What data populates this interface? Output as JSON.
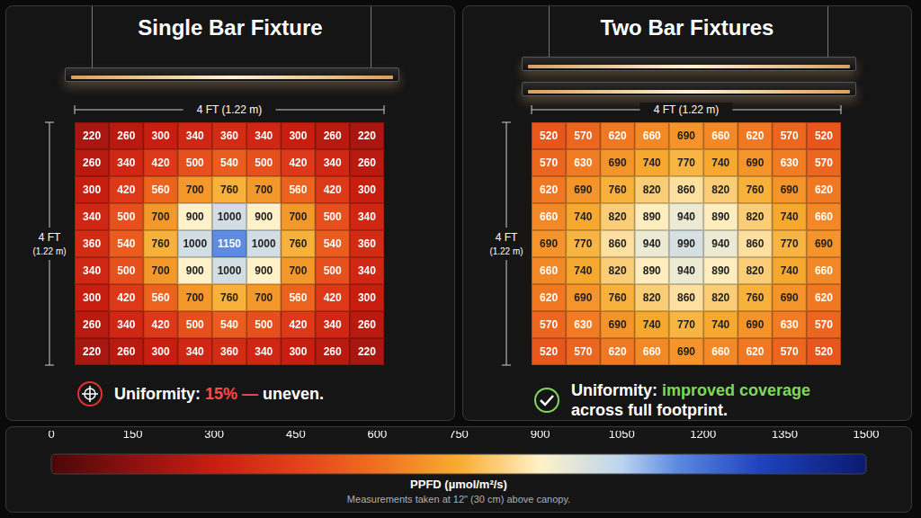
{
  "chart_data": [
    {
      "type": "heatmap",
      "title": "Single Bar Fixture",
      "x_label": "4 FT (1.22 m)",
      "y_label": "4 FT (1.22 m)",
      "tick_labels": false,
      "data_labels": true,
      "cells": [
        [
          220,
          260,
          300,
          340,
          360,
          340,
          300,
          260,
          220
        ],
        [
          260,
          340,
          420,
          500,
          540,
          500,
          420,
          340,
          260
        ],
        [
          300,
          420,
          560,
          700,
          760,
          700,
          560,
          420,
          300
        ],
        [
          340,
          500,
          700,
          900,
          1000,
          900,
          700,
          500,
          340
        ],
        [
          360,
          540,
          760,
          1000,
          1150,
          1000,
          760,
          540,
          360
        ],
        [
          340,
          500,
          700,
          900,
          1000,
          900,
          700,
          500,
          340
        ],
        [
          300,
          420,
          560,
          700,
          760,
          700,
          560,
          420,
          300
        ],
        [
          260,
          340,
          420,
          500,
          540,
          500,
          420,
          340,
          260
        ],
        [
          220,
          260,
          300,
          340,
          360,
          340,
          300,
          260,
          220
        ]
      ],
      "annotation": [
        {
          "text": "Uniformity:"
        },
        {
          "text": "15% —",
          "color": "#ff4a4a"
        },
        {
          "text": "uneven."
        }
      ]
    },
    {
      "type": "heatmap",
      "title": "Two Bar Fixtures",
      "x_label": "4 FT (1.22 m)",
      "y_label": "4 FT (1.22 m)",
      "tick_labels": false,
      "data_labels": true,
      "cells": [
        [
          520,
          570,
          620,
          660,
          690,
          660,
          620,
          570,
          520
        ],
        [
          570,
          630,
          690,
          740,
          770,
          740,
          690,
          630,
          570
        ],
        [
          620,
          690,
          760,
          820,
          860,
          820,
          760,
          690,
          620
        ],
        [
          660,
          740,
          820,
          890,
          940,
          890,
          820,
          740,
          660
        ],
        [
          690,
          770,
          860,
          940,
          990,
          940,
          860,
          770,
          690
        ],
        [
          660,
          740,
          820,
          890,
          940,
          890,
          820,
          740,
          660
        ],
        [
          620,
          690,
          760,
          820,
          860,
          820,
          760,
          690,
          620
        ],
        [
          570,
          630,
          690,
          740,
          770,
          740,
          690,
          630,
          570
        ],
        [
          520,
          570,
          620,
          660,
          690,
          660,
          620,
          570,
          520
        ]
      ],
      "annotation": [
        {
          "text": "Uniformity:"
        },
        {
          "text": "improved coverage",
          "color": "#7ed957"
        },
        {
          "text": "across full footprint."
        }
      ]
    }
  ],
  "color_bar": {
    "label": "PPFD (µmol/m²/s)",
    "range": [
      0,
      1500
    ],
    "ticks": [
      0,
      150,
      300,
      450,
      600,
      750,
      900,
      1050,
      1200,
      1350,
      1500
    ]
  },
  "note": "Measurements taken at 12\" (30 cm) above canopy."
}
